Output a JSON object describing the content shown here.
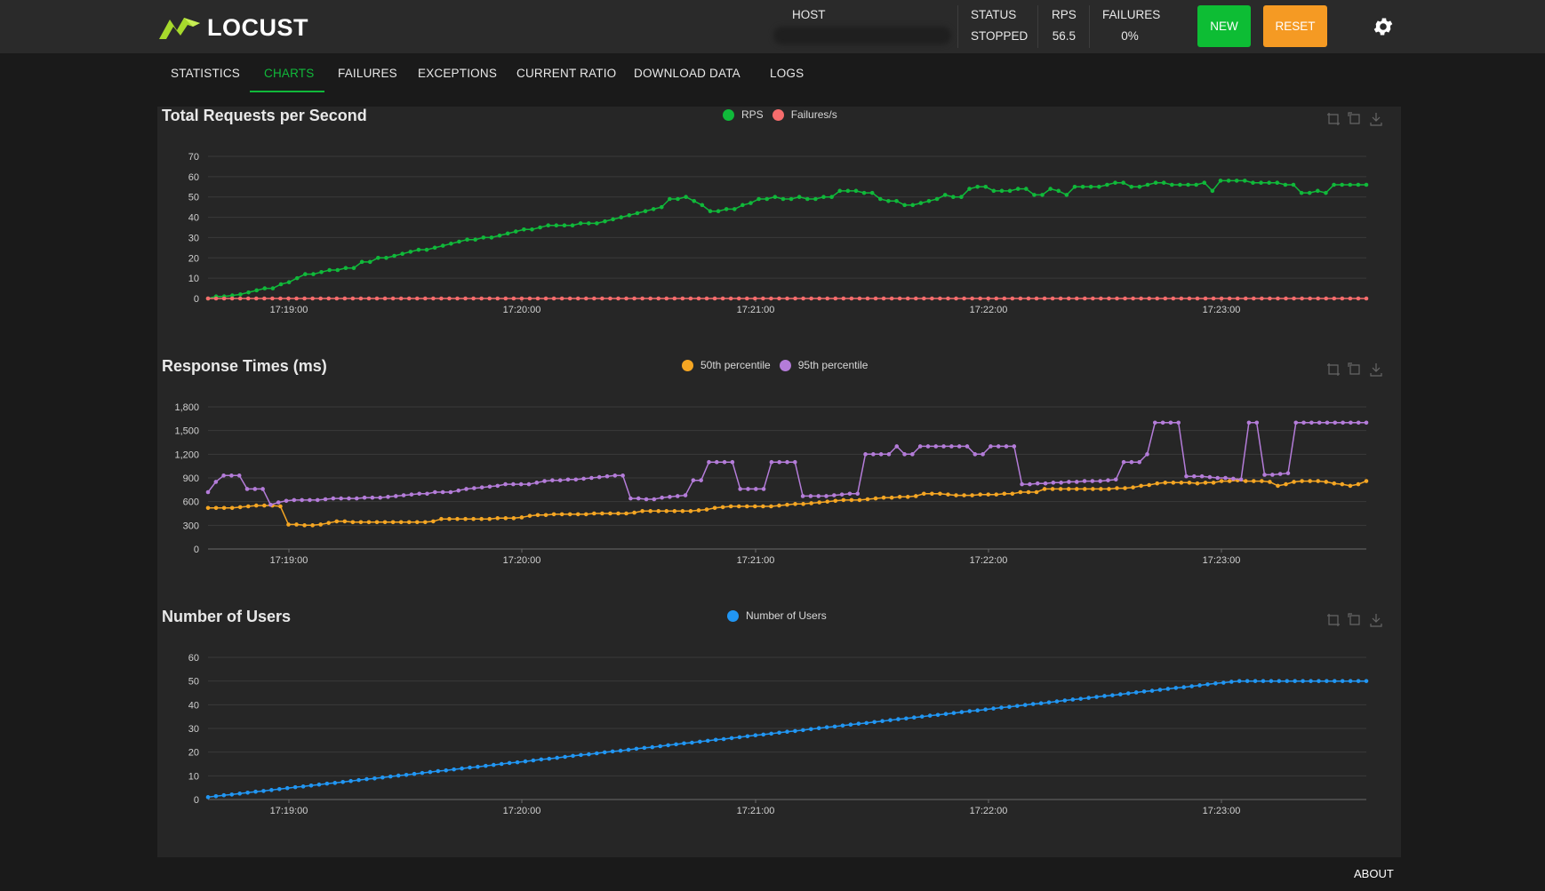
{
  "header": {
    "brand": "LOCUST",
    "host_label": "HOST",
    "status_label": "STATUS",
    "status_value": "STOPPED",
    "rps_label": "RPS",
    "rps_value": "56.5",
    "failures_label": "FAILURES",
    "failures_value": "0%",
    "new_label": "NEW",
    "reset_label": "RESET",
    "brand_color": "#a6d92c",
    "new_color": "#0dbd34",
    "reset_color": "#f59a23"
  },
  "tabs": [
    {
      "label": "STATISTICS"
    },
    {
      "label": "CHARTS",
      "active": true
    },
    {
      "label": "FAILURES"
    },
    {
      "label": "EXCEPTIONS"
    },
    {
      "label": "CURRENT RATIO"
    },
    {
      "label": "DOWNLOAD DATA"
    },
    {
      "label": "LOGS"
    }
  ],
  "footer": {
    "about_label": "ABOUT"
  },
  "chart_data": [
    {
      "type": "line",
      "title": "Total Requests per Second",
      "x_ticks": [
        "17:19:00",
        "17:20:00",
        "17:21:00",
        "17:22:00",
        "17:23:00"
      ],
      "ylim": [
        0,
        70
      ],
      "y_ticks": [
        "0",
        "10",
        "20",
        "30",
        "40",
        "50",
        "60",
        "70"
      ],
      "grid": true,
      "legend_position": "top",
      "series": [
        {
          "name": "RPS",
          "color": "#10b93a",
          "values": [
            0,
            1,
            1,
            1.5,
            2,
            3,
            4,
            5,
            5,
            7,
            8,
            10,
            12,
            12,
            13,
            14,
            14,
            15,
            15,
            18,
            18,
            20,
            20,
            21,
            22,
            23,
            24,
            24,
            25,
            26,
            27,
            28,
            29,
            29,
            30,
            30,
            31,
            32,
            33,
            34,
            34,
            35,
            36,
            36,
            36,
            36,
            37,
            37,
            37,
            38,
            39,
            40,
            41,
            42,
            43,
            44,
            45,
            49,
            49,
            50,
            48,
            46,
            43,
            43,
            44,
            44,
            46,
            47,
            49,
            49,
            50,
            49,
            49,
            50,
            49,
            49,
            50,
            50,
            53,
            53,
            53,
            52,
            52,
            49,
            48,
            48,
            46,
            46,
            47,
            48,
            49,
            51,
            50,
            50,
            54,
            55,
            55,
            53,
            53,
            53,
            54,
            54,
            51,
            51,
            54,
            53,
            51,
            55,
            55,
            55,
            55,
            56,
            57,
            57,
            55,
            55,
            56,
            57,
            57,
            56,
            56,
            56,
            56,
            57,
            53,
            58,
            58,
            58,
            58,
            57,
            57,
            57,
            57,
            56,
            56,
            52,
            52,
            53,
            52,
            56,
            56,
            56,
            56,
            56
          ]
        },
        {
          "name": "Failures/s",
          "color": "#f56c6c",
          "values": [
            0,
            0,
            0,
            0,
            0,
            0,
            0,
            0,
            0,
            0,
            0,
            0,
            0,
            0,
            0,
            0,
            0,
            0,
            0,
            0,
            0,
            0,
            0,
            0,
            0,
            0,
            0,
            0,
            0,
            0,
            0,
            0,
            0,
            0,
            0,
            0,
            0,
            0,
            0,
            0,
            0,
            0,
            0,
            0,
            0,
            0,
            0,
            0,
            0,
            0,
            0,
            0,
            0,
            0,
            0,
            0,
            0,
            0,
            0,
            0,
            0,
            0,
            0,
            0,
            0,
            0,
            0,
            0,
            0,
            0,
            0,
            0,
            0,
            0,
            0,
            0,
            0,
            0,
            0,
            0,
            0,
            0,
            0,
            0,
            0,
            0,
            0,
            0,
            0,
            0,
            0,
            0,
            0,
            0,
            0,
            0,
            0,
            0,
            0,
            0,
            0,
            0,
            0,
            0,
            0,
            0,
            0,
            0,
            0,
            0,
            0,
            0,
            0,
            0,
            0,
            0,
            0,
            0,
            0,
            0,
            0,
            0,
            0,
            0,
            0,
            0,
            0,
            0,
            0,
            0,
            0,
            0,
            0,
            0,
            0,
            0,
            0,
            0,
            0,
            0,
            0,
            0,
            0,
            0,
            0
          ]
        }
      ]
    },
    {
      "type": "line",
      "title": "Response Times (ms)",
      "x_ticks": [
        "17:19:00",
        "17:20:00",
        "17:21:00",
        "17:22:00",
        "17:23:00"
      ],
      "ylim": [
        0,
        1800
      ],
      "y_ticks": [
        "0",
        "300",
        "600",
        "900",
        "1,200",
        "1,500",
        "1,800"
      ],
      "grid": true,
      "legend_position": "top",
      "series": [
        {
          "name": "50th percentile",
          "color": "#f5a623",
          "values": [
            520,
            520,
            520,
            520,
            530,
            540,
            550,
            550,
            550,
            540,
            310,
            310,
            300,
            300,
            310,
            330,
            350,
            350,
            340,
            340,
            340,
            340,
            340,
            340,
            340,
            340,
            340,
            340,
            350,
            380,
            380,
            380,
            380,
            380,
            380,
            380,
            390,
            390,
            390,
            400,
            420,
            430,
            430,
            440,
            440,
            440,
            440,
            440,
            450,
            450,
            450,
            450,
            450,
            460,
            480,
            480,
            480,
            480,
            480,
            480,
            480,
            490,
            500,
            520,
            530,
            540,
            540,
            540,
            540,
            540,
            540,
            550,
            560,
            570,
            570,
            580,
            590,
            600,
            610,
            620,
            620,
            620,
            630,
            640,
            650,
            650,
            660,
            660,
            670,
            700,
            700,
            700,
            690,
            680,
            680,
            680,
            690,
            690,
            690,
            700,
            700,
            720,
            720,
            720,
            760,
            760,
            760,
            760,
            760,
            760,
            760,
            760,
            760,
            770,
            770,
            780,
            800,
            810,
            830,
            840,
            840,
            840,
            840,
            830,
            840,
            840,
            860,
            860,
            870,
            860,
            860,
            860,
            850,
            800,
            820,
            850,
            860,
            860,
            860,
            850,
            830,
            820,
            800,
            820,
            860
          ]
        },
        {
          "name": "95th percentile",
          "color": "#b47cd9",
          "values": [
            720,
            850,
            930,
            930,
            930,
            760,
            760,
            760,
            560,
            590,
            610,
            620,
            620,
            620,
            620,
            630,
            640,
            640,
            640,
            640,
            650,
            650,
            650,
            660,
            670,
            680,
            690,
            700,
            700,
            720,
            720,
            720,
            740,
            760,
            770,
            780,
            790,
            800,
            820,
            820,
            820,
            820,
            840,
            860,
            870,
            870,
            880,
            880,
            890,
            900,
            910,
            920,
            930,
            930,
            640,
            640,
            630,
            630,
            650,
            660,
            670,
            680,
            870,
            870,
            1100,
            1100,
            1100,
            1100,
            760,
            760,
            760,
            760,
            1100,
            1100,
            1100,
            1100,
            670,
            670,
            670,
            670,
            680,
            690,
            700,
            700,
            1200,
            1200,
            1200,
            1200,
            1300,
            1200,
            1200,
            1300,
            1300,
            1300,
            1300,
            1300,
            1300,
            1300,
            1200,
            1200,
            1300,
            1300,
            1300,
            1300,
            820,
            820,
            830,
            830,
            840,
            840,
            850,
            850,
            860,
            860,
            860,
            870,
            880,
            1100,
            1100,
            1100,
            1200,
            1600,
            1600,
            1600,
            1600,
            920,
            920,
            920,
            910,
            900,
            900,
            890,
            880,
            1600,
            1600,
            940,
            940,
            950,
            960,
            1600,
            1600,
            1600,
            1600,
            1600,
            1600,
            1600,
            1600,
            1600,
            1600
          ]
        }
      ]
    },
    {
      "type": "line",
      "title": "Number of Users",
      "x_ticks": [
        "17:19:00",
        "17:20:00",
        "17:21:00",
        "17:22:00",
        "17:23:00"
      ],
      "ylim": [
        0,
        60
      ],
      "y_ticks": [
        "0",
        "10",
        "20",
        "30",
        "40",
        "50",
        "60"
      ],
      "grid": true,
      "legend_position": "top",
      "series": [
        {
          "name": "Number of Users",
          "color": "#2196f3",
          "values": [
            1,
            1.4,
            1.8,
            2.1,
            2.5,
            2.9,
            3.3,
            3.6,
            4,
            4.4,
            4.8,
            5.2,
            5.5,
            5.9,
            6.3,
            6.7,
            7,
            7.4,
            7.8,
            8.2,
            8.6,
            8.9,
            9.3,
            9.7,
            10.1,
            10.4,
            10.8,
            11.2,
            11.6,
            12,
            12.3,
            12.7,
            13.1,
            13.5,
            13.8,
            14.2,
            14.6,
            15,
            15.4,
            15.7,
            16.1,
            16.5,
            16.9,
            17.2,
            17.6,
            18,
            18.4,
            18.8,
            19.1,
            19.5,
            19.9,
            20.3,
            20.6,
            21,
            21.4,
            21.8,
            22.1,
            22.5,
            22.9,
            23.3,
            23.7,
            24,
            24.4,
            24.8,
            25.2,
            25.5,
            25.9,
            26.3,
            26.7,
            27.1,
            27.4,
            27.8,
            28.2,
            28.6,
            28.9,
            29.3,
            29.7,
            30.1,
            30.5,
            30.8,
            31.2,
            31.6,
            32,
            32.3,
            32.7,
            33.1,
            33.5,
            33.9,
            34.2,
            34.6,
            35,
            35.4,
            35.7,
            36.1,
            36.5,
            36.9,
            37.3,
            37.6,
            38,
            38.4,
            38.8,
            39.1,
            39.5,
            39.9,
            40.3,
            40.6,
            41,
            41.4,
            41.8,
            42.2,
            42.5,
            42.9,
            43.3,
            43.7,
            44,
            44.4,
            44.8,
            45.2,
            45.6,
            45.9,
            46.3,
            46.7,
            47.1,
            47.4,
            47.8,
            48.2,
            48.6,
            49,
            49.3,
            49.7,
            50,
            50,
            50,
            50,
            50,
            50,
            50,
            50,
            50,
            50,
            50,
            50,
            50,
            50,
            50,
            50,
            50
          ]
        }
      ]
    }
  ]
}
